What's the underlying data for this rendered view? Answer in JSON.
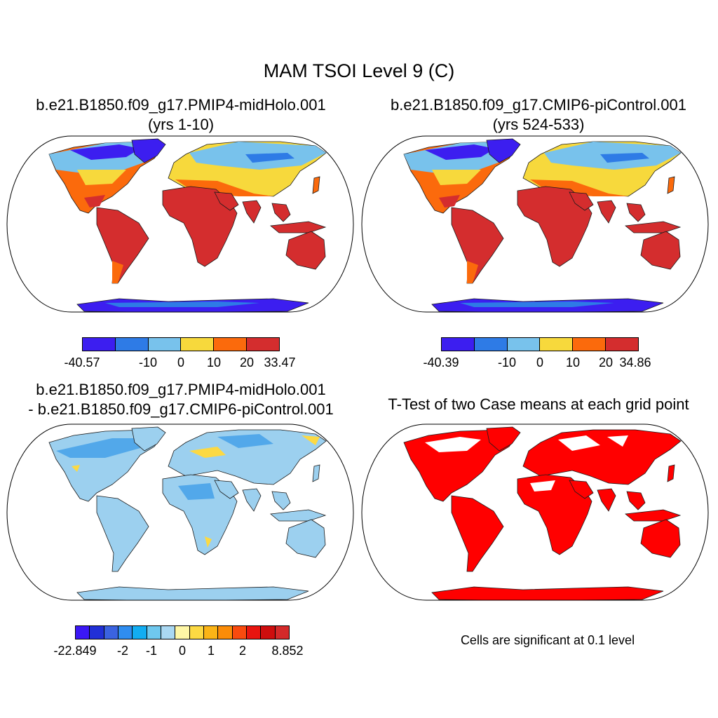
{
  "title": "MAM TSOI Level 9 (C)",
  "panels": {
    "p1": {
      "title_line1": "b.e21.B1850.f09_g17.PMIP4-midHolo.001",
      "title_line2": "(yrs 1-10)"
    },
    "p2": {
      "title_line1": "b.e21.B1850.f09_g17.CMIP6-piControl.001",
      "title_line2": "(yrs 524-533)"
    },
    "p3": {
      "title_line1": "b.e21.B1850.f09_g17.PMIP4-midHolo.001",
      "title_line2": "- b.e21.B1850.f09_g17.CMIP6-piControl.001"
    },
    "p4": {
      "title_line1": "T-Test of two Case means at each grid point",
      "note": "Cells are significant at 0.1 level"
    }
  },
  "colorbars": {
    "cb1": {
      "colors": [
        "#3c1ef0",
        "#2e7be6",
        "#78c2ec",
        "#f7d93c",
        "#fb6a0c",
        "#d42d2e"
      ],
      "labels": [
        "-40.57",
        "-10",
        "0",
        "10",
        "20",
        "33.47"
      ]
    },
    "cb2": {
      "colors": [
        "#3c1ef0",
        "#2e7be6",
        "#78c2ec",
        "#f7d93c",
        "#fb6a0c",
        "#d42d2e"
      ],
      "labels": [
        "-40.39",
        "-10",
        "0",
        "10",
        "20",
        "34.86"
      ]
    },
    "cb3": {
      "colors": [
        "#3b17f5",
        "#2130d6",
        "#3b63e0",
        "#2f8df0",
        "#12adf2",
        "#6fc8ee",
        "#aad8f2",
        "#fff7a6",
        "#fcd943",
        "#fbb416",
        "#fb8c08",
        "#f94a0e",
        "#e8150f",
        "#ce0e0e",
        "#d42a2a"
      ],
      "labels": [
        "-22.849",
        "-2",
        "-1",
        "0",
        "1",
        "2",
        "8.852"
      ]
    }
  },
  "map_colors": {
    "cold": "#3c1ef0",
    "cool": "#2e7be6",
    "light": "#78c2ec",
    "mild": "#f7d93c",
    "warm": "#fb6a0c",
    "hot": "#d42d2e",
    "diff_base": "#9cd0ef",
    "diff_blue": "#52a8ea",
    "diff_yellow": "#fcd943",
    "sig_red": "#ff0000"
  }
}
